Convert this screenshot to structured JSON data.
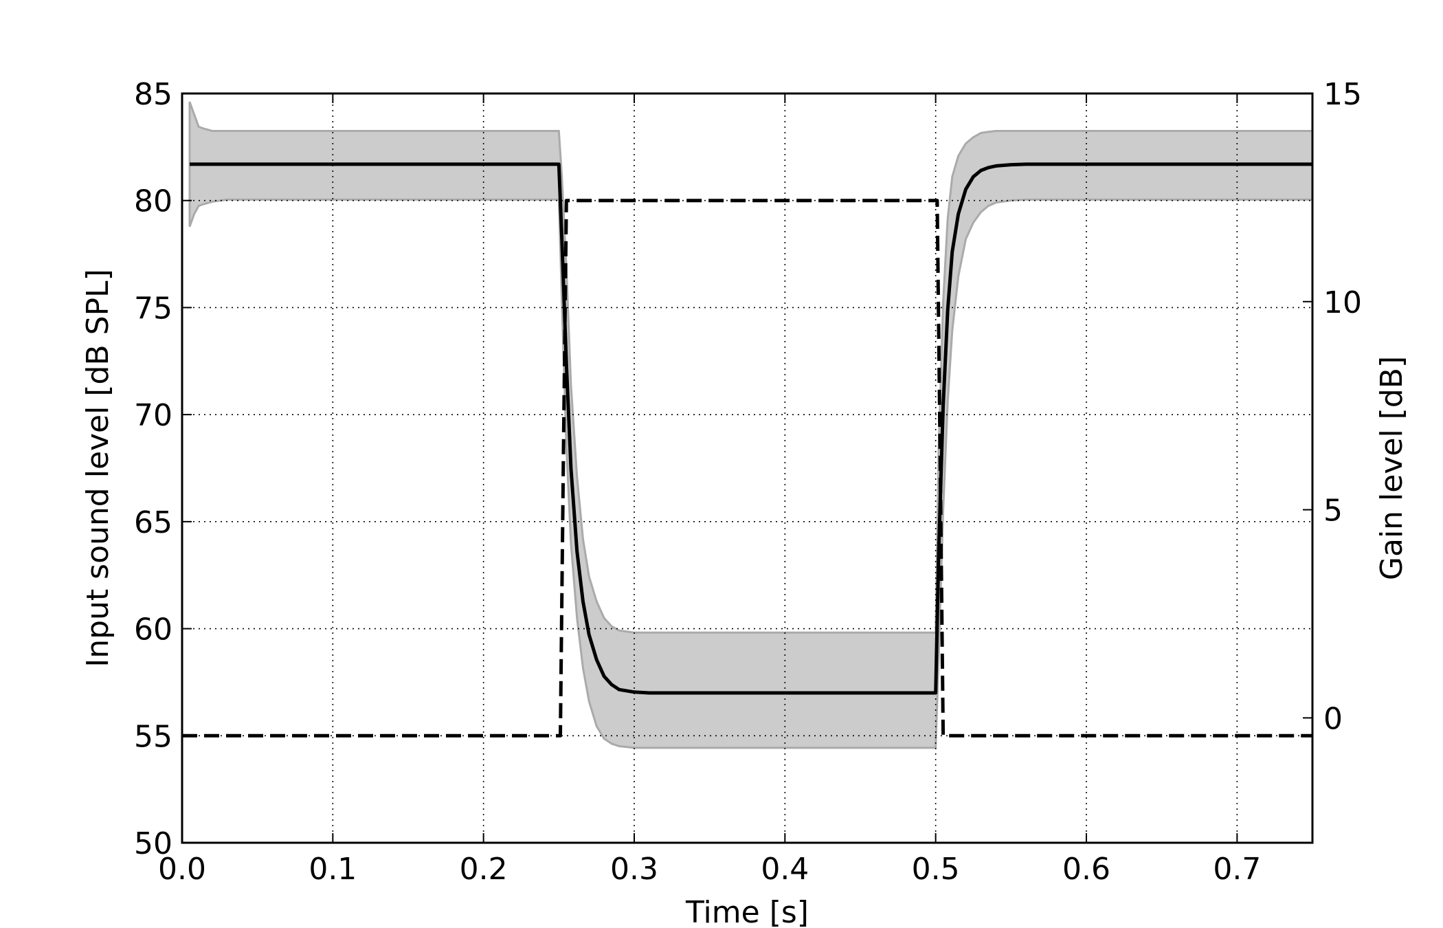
{
  "chart_data": {
    "type": "line",
    "title": "",
    "xlabel": "Time [s]",
    "ylabel_left": "Input sound level [dB SPL]",
    "ylabel_right": "Gain level [dB]",
    "xlim": [
      0.0,
      0.75
    ],
    "ylim_left": [
      50,
      85
    ],
    "ylim_right": [
      -3,
      15
    ],
    "grid": true,
    "x_ticks": [
      "0.0",
      "0.1",
      "0.2",
      "0.3",
      "0.4",
      "0.5",
      "0.6",
      "0.7"
    ],
    "y_left_ticks": [
      "50",
      "55",
      "60",
      "65",
      "70",
      "75",
      "80",
      "85"
    ],
    "y_right_ticks": [
      "0",
      "5",
      "10",
      "15"
    ],
    "colors": {
      "band": "#cccccc",
      "band_edge": "#aaaaaa",
      "line": "#000000"
    },
    "series": [
      {
        "axis": "left",
        "style": "dashed",
        "x": [
          0.0,
          0.249,
          0.251,
          0.253,
          0.255,
          0.499,
          0.501,
          0.503,
          0.505,
          0.75
        ],
        "y": [
          55,
          55,
          55,
          68,
          80,
          80,
          80,
          68,
          55,
          55
        ]
      },
      {
        "axis": "right",
        "style": "solid",
        "x": [
          0.005,
          0.25,
          0.252,
          0.255,
          0.258,
          0.262,
          0.266,
          0.27,
          0.275,
          0.28,
          0.285,
          0.29,
          0.3,
          0.31,
          0.32,
          0.5,
          0.502,
          0.505,
          0.508,
          0.511,
          0.515,
          0.52,
          0.525,
          0.53,
          0.535,
          0.54,
          0.55,
          0.56,
          0.75
        ],
        "y": [
          13.3,
          13.3,
          11.5,
          8.5,
          6.0,
          4.0,
          2.8,
          2.0,
          1.4,
          1.0,
          0.8,
          0.68,
          0.62,
          0.6,
          0.6,
          0.6,
          4.0,
          7.5,
          9.8,
          11.2,
          12.1,
          12.7,
          13.0,
          13.15,
          13.22,
          13.26,
          13.29,
          13.3,
          13.3
        ]
      },
      {
        "axis": "right",
        "style": "band",
        "x": [
          0.005,
          0.008,
          0.011,
          0.015,
          0.02,
          0.03,
          0.25,
          0.252,
          0.255,
          0.258,
          0.262,
          0.266,
          0.27,
          0.275,
          0.28,
          0.285,
          0.29,
          0.3,
          0.31,
          0.5,
          0.502,
          0.505,
          0.508,
          0.511,
          0.515,
          0.52,
          0.525,
          0.53,
          0.535,
          0.54,
          0.55,
          0.56,
          0.75
        ],
        "upper": [
          14.8,
          14.5,
          14.2,
          14.15,
          14.1,
          14.1,
          14.1,
          13.0,
          10.8,
          8.0,
          5.8,
          4.3,
          3.4,
          2.8,
          2.4,
          2.2,
          2.1,
          2.05,
          2.05,
          2.05,
          6.5,
          10.0,
          12.0,
          13.0,
          13.5,
          13.8,
          13.95,
          14.05,
          14.08,
          14.1,
          14.1,
          14.1,
          14.1
        ],
        "lower": [
          11.8,
          12.1,
          12.3,
          12.35,
          12.4,
          12.45,
          12.45,
          10.0,
          6.5,
          4.2,
          2.4,
          1.2,
          0.4,
          -0.2,
          -0.5,
          -0.62,
          -0.68,
          -0.72,
          -0.72,
          -0.72,
          1.5,
          5.0,
          7.6,
          9.3,
          10.6,
          11.5,
          11.9,
          12.15,
          12.3,
          12.38,
          12.43,
          12.45,
          12.45
        ]
      }
    ]
  }
}
